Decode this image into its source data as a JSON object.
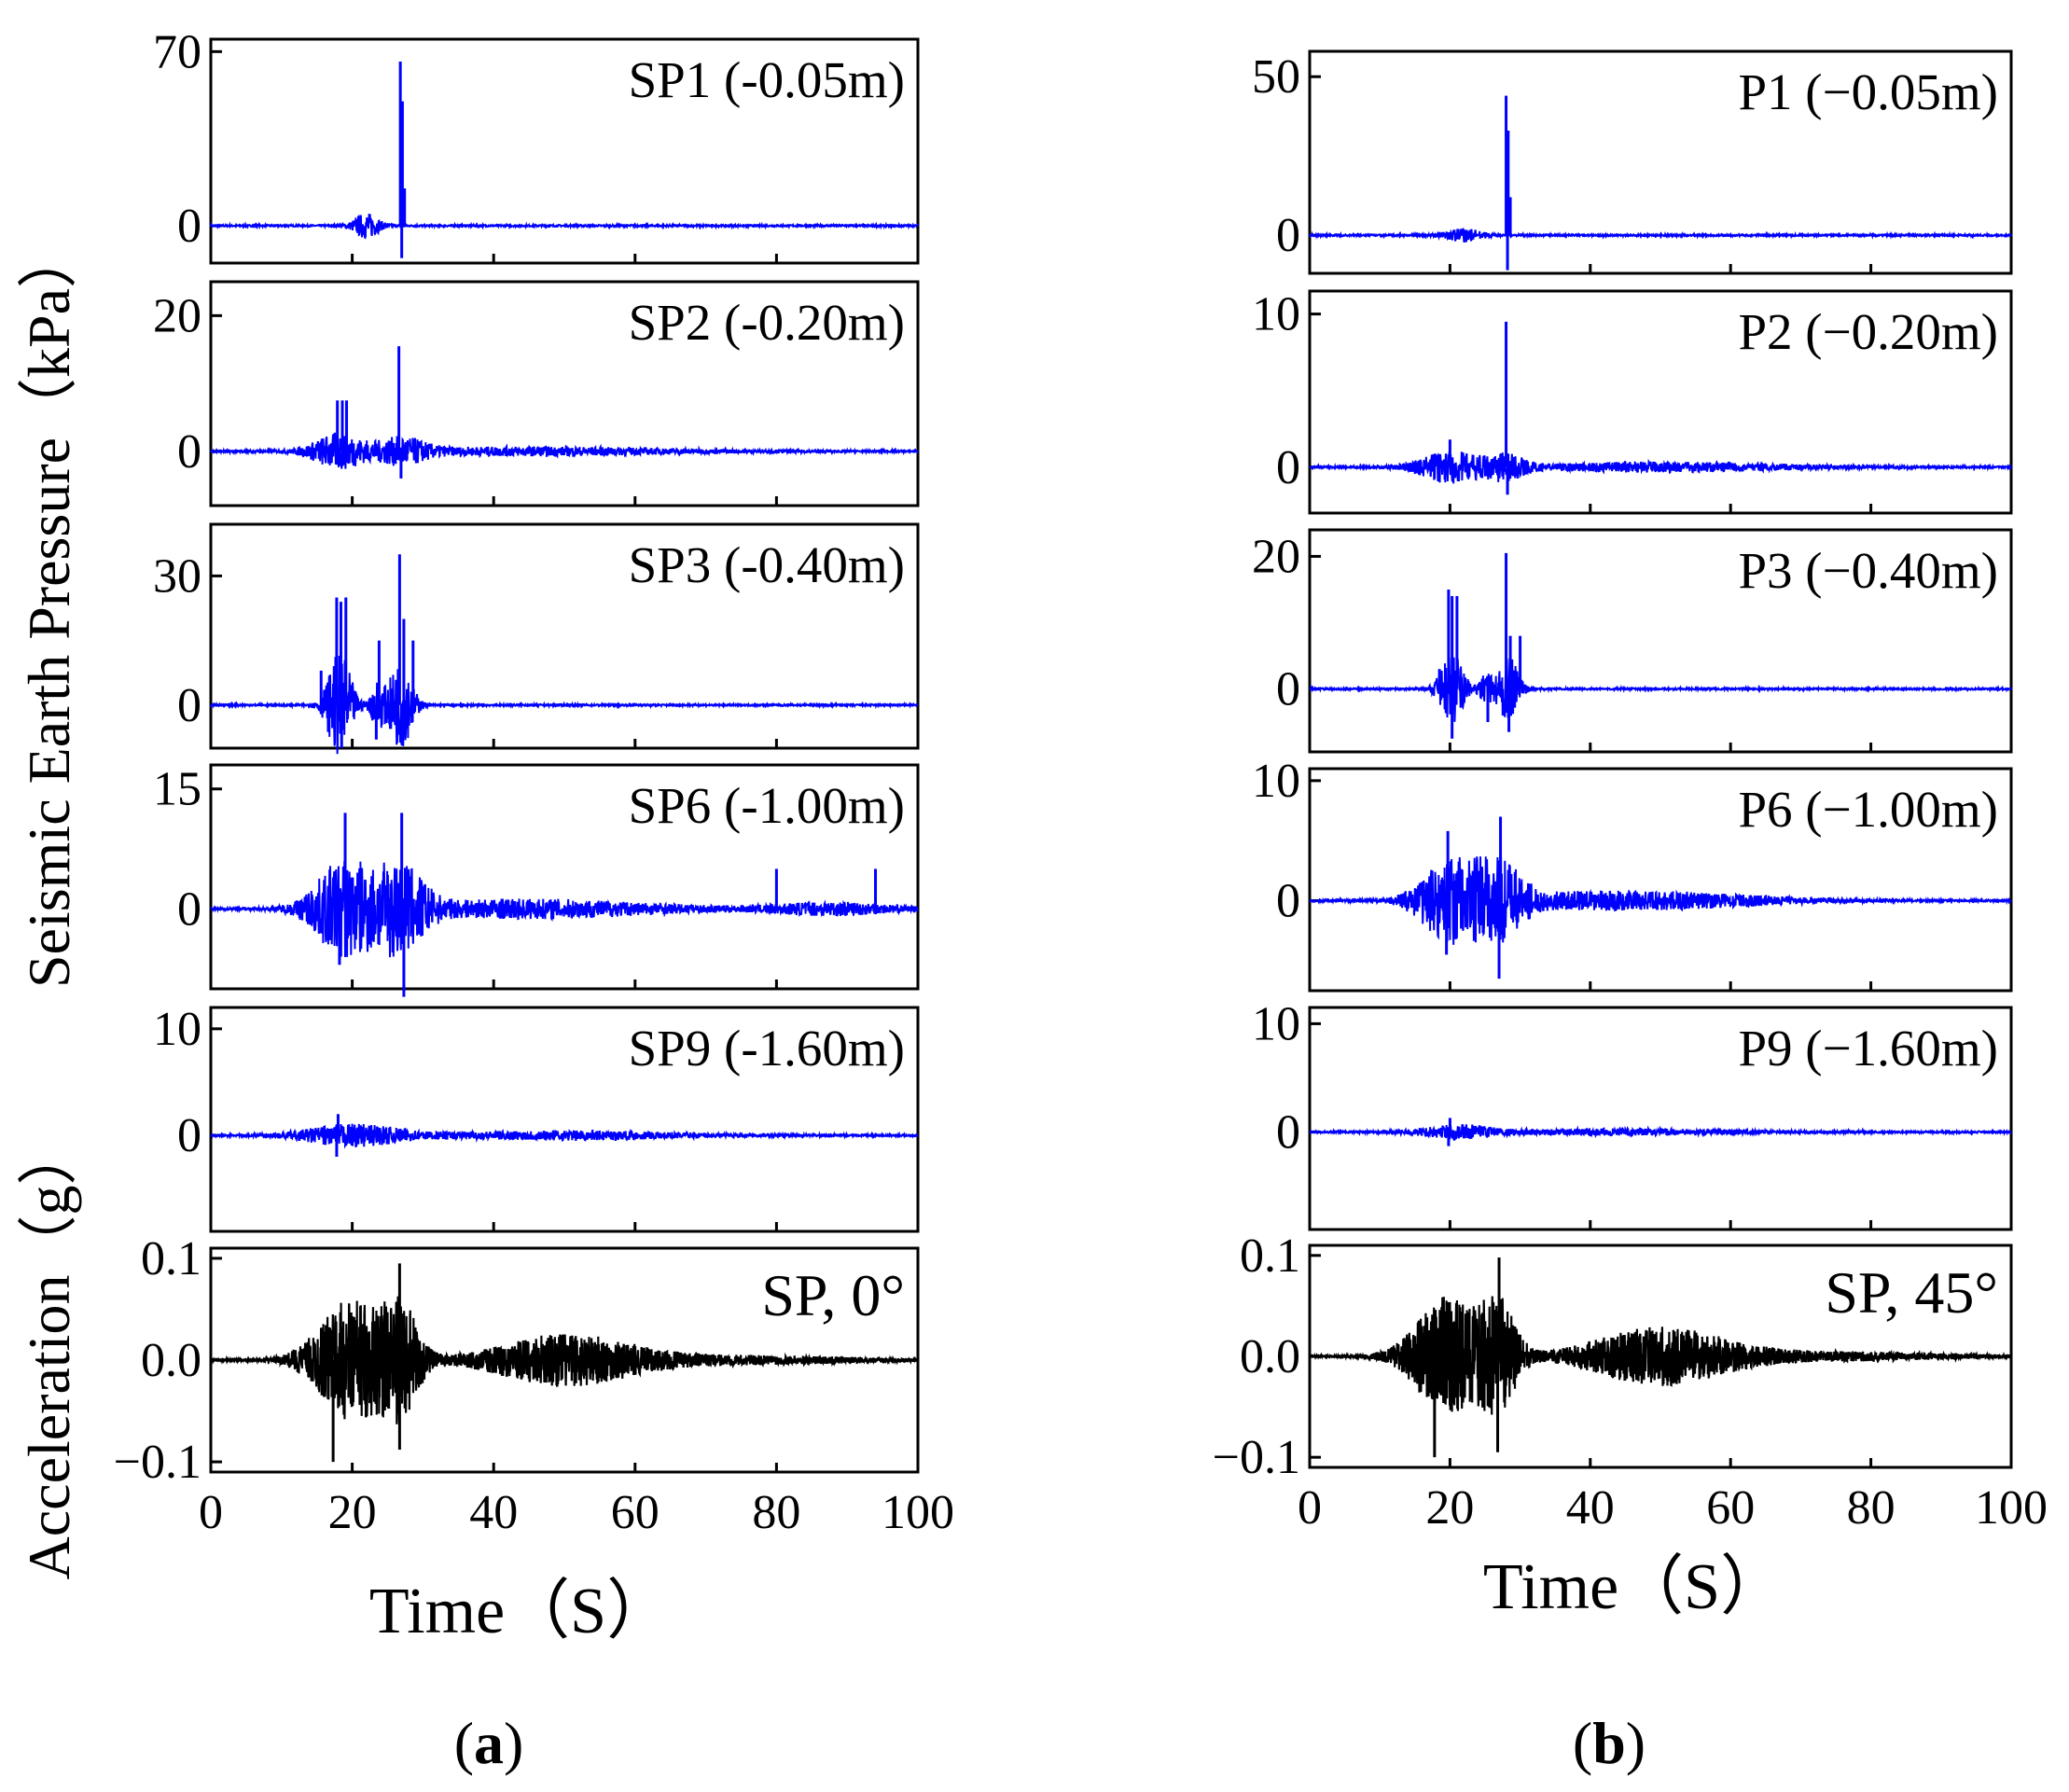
{
  "chart_data": [
    {
      "type": "line",
      "panel": "a",
      "caption": {
        "open": "(",
        "letter": "a",
        "close": ")"
      },
      "xlabel": "Time（S）",
      "ylabel_pressure": "Seismic Earth Pressure（kPa）",
      "ylabel_acceleration": "Acceleration（g）",
      "x_ticks": [
        "0",
        "20",
        "40",
        "60",
        "80",
        "100"
      ],
      "xlim": [
        0,
        100
      ],
      "subplots": [
        {
          "label": "SP1 (-0.05m)",
          "color": "#0000ff",
          "ylim": [
            -15,
            75
          ],
          "yticks": [
            0,
            70
          ],
          "ytick_labels": [
            "0",
            "70"
          ],
          "spikes": [
            [
              26.8,
              66
            ],
            [
              27.1,
              50
            ],
            [
              27.4,
              15
            ],
            [
              27.0,
              -13
            ]
          ],
          "bursts": [
            [
              22,
              2,
              5
            ]
          ]
        },
        {
          "label": "SP2 (-0.20m)",
          "color": "#0000ff",
          "ylim": [
            -8,
            25
          ],
          "yticks": [
            0,
            20
          ],
          "ytick_labels": [
            "0",
            "20"
          ],
          "spikes": [
            [
              17.9,
              7.5
            ],
            [
              18.6,
              7.5
            ],
            [
              19.2,
              7.5
            ],
            [
              26.6,
              15.5
            ],
            [
              26.9,
              -4
            ]
          ],
          "bursts": [
            [
              18,
              4,
              2.5
            ],
            [
              27,
              4,
              1.8
            ],
            [
              45,
              25,
              0.6
            ]
          ]
        },
        {
          "label": "SP3 (-0.40m)",
          "color": "#0000ff",
          "ylim": [
            -10,
            42
          ],
          "yticks": [
            0,
            30
          ],
          "ytick_labels": [
            "0",
            "30"
          ],
          "spikes": [
            [
              15.6,
              8
            ],
            [
              17.8,
              25
            ],
            [
              18.4,
              24
            ],
            [
              19.1,
              25
            ],
            [
              23.8,
              15
            ],
            [
              26.7,
              35
            ],
            [
              27.3,
              20
            ],
            [
              28.6,
              15
            ],
            [
              18.5,
              -10
            ],
            [
              23.4,
              -8
            ],
            [
              27.0,
              -9
            ]
          ],
          "bursts": [
            [
              18.2,
              2,
              12
            ],
            [
              26.8,
              2,
              10
            ],
            [
              23.5,
              1,
              5
            ]
          ]
        },
        {
          "label": "SP6 (-1.00m)",
          "color": "#0000ff",
          "ylim": [
            -10,
            18
          ],
          "yticks": [
            0,
            15
          ],
          "ytick_labels": [
            "0",
            "15"
          ],
          "spikes": [
            [
              19.0,
              12
            ],
            [
              27.0,
              12
            ],
            [
              80.0,
              5
            ],
            [
              94.0,
              5
            ],
            [
              27.3,
              -11
            ],
            [
              18.2,
              -7
            ]
          ],
          "bursts": [
            [
              19,
              5,
              6
            ],
            [
              27,
              4,
              5
            ],
            [
              45,
              22,
              1.2
            ],
            [
              88,
              10,
              0.8
            ]
          ]
        },
        {
          "label": "SP9 (-1.60m)",
          "color": "#0000ff",
          "ylim": [
            -9,
            12
          ],
          "yticks": [
            0,
            10
          ],
          "ytick_labels": [
            "0",
            "10"
          ],
          "spikes": [
            [
              18.0,
              2
            ],
            [
              17.8,
              -2
            ]
          ],
          "bursts": [
            [
              20,
              8,
              1.0
            ],
            [
              50,
              20,
              0.4
            ]
          ]
        },
        {
          "label": "SP, 0°",
          "color": "#000000",
          "ylim": [
            -0.11,
            0.11
          ],
          "yticks": [
            -0.1,
            0.0,
            0.1
          ],
          "ytick_labels": [
            "−0.1",
            "0.0",
            "0.1"
          ],
          "spikes": [
            [
              26.7,
              0.095
            ],
            [
              17.3,
              -0.1
            ],
            [
              26.7,
              -0.088
            ]
          ],
          "bursts": [
            [
              20,
              6,
              0.06
            ],
            [
              27,
              3,
              0.045
            ],
            [
              50,
              12,
              0.025
            ],
            [
              75,
              20,
              0.004
            ]
          ]
        }
      ]
    },
    {
      "type": "line",
      "panel": "b",
      "caption": {
        "open": "(",
        "letter": "b",
        "close": ")"
      },
      "xlabel": "Time（S）",
      "x_ticks": [
        "0",
        "20",
        "40",
        "60",
        "80",
        "100"
      ],
      "xlim": [
        0,
        100
      ],
      "subplots": [
        {
          "label": "P1 (−0.05m)",
          "color": "#0000ff",
          "ylim": [
            -12,
            58
          ],
          "yticks": [
            0,
            50
          ],
          "ytick_labels": [
            "0",
            "50"
          ],
          "spikes": [
            [
              28.0,
              44
            ],
            [
              28.3,
              33
            ],
            [
              28.6,
              12
            ],
            [
              28.2,
              -11
            ]
          ],
          "bursts": [
            [
              22,
              3,
              2
            ]
          ]
        },
        {
          "label": "P2 (−0.20m)",
          "color": "#0000ff",
          "ylim": [
            -3,
            11.5
          ],
          "yticks": [
            0,
            10
          ],
          "ytick_labels": [
            "0",
            "10"
          ],
          "spikes": [
            [
              28.0,
              9.5
            ],
            [
              20.0,
              1.8
            ],
            [
              28.2,
              -1.8
            ]
          ],
          "bursts": [
            [
              20,
              5,
              1.0
            ],
            [
              28,
              3,
              0.8
            ],
            [
              50,
              22,
              0.3
            ]
          ]
        },
        {
          "label": "P3 (−0.40m)",
          "color": "#0000ff",
          "ylim": [
            -9.5,
            24
          ],
          "yticks": [
            0,
            20
          ],
          "ytick_labels": [
            "0",
            "20"
          ],
          "spikes": [
            [
              18.5,
              3
            ],
            [
              19.8,
              15
            ],
            [
              20.3,
              14
            ],
            [
              21.0,
              14
            ],
            [
              28.0,
              20.5
            ],
            [
              28.6,
              8
            ],
            [
              30.0,
              8
            ],
            [
              20.3,
              -7.5
            ],
            [
              25.4,
              -5
            ],
            [
              28.4,
              -6.5
            ]
          ],
          "bursts": [
            [
              20.3,
              2,
              5
            ],
            [
              28.2,
              1.8,
              5
            ],
            [
              25.1,
              1,
              2
            ]
          ]
        },
        {
          "label": "P6 (−1.00m)",
          "color": "#0000ff",
          "ylim": [
            -7.5,
            11
          ],
          "yticks": [
            0,
            10
          ],
          "ytick_labels": [
            "0",
            "10"
          ],
          "spikes": [
            [
              19.7,
              5.8
            ],
            [
              27.2,
              7
            ],
            [
              27.0,
              -6.5
            ],
            [
              19.5,
              -4.5
            ]
          ],
          "bursts": [
            [
              20,
              5,
              3.2
            ],
            [
              27,
              4,
              3.0
            ],
            [
              45,
              22,
              0.8
            ]
          ]
        },
        {
          "label": "P9 (−1.60m)",
          "color": "#0000ff",
          "ylim": [
            -9,
            11.5
          ],
          "yticks": [
            0,
            10
          ],
          "ytick_labels": [
            "0",
            "10"
          ],
          "spikes": [
            [
              20.0,
              1.3
            ],
            [
              19.8,
              -1.3
            ]
          ],
          "bursts": [
            [
              21,
              6,
              0.6
            ],
            [
              45,
              20,
              0.25
            ]
          ]
        },
        {
          "label": "SP, 45°",
          "color": "#000000",
          "ylim": [
            -0.11,
            0.11
          ],
          "yticks": [
            -0.1,
            0.0,
            0.1
          ],
          "ytick_labels": [
            "−0.1",
            "0.0",
            "0.1"
          ],
          "spikes": [
            [
              27.0,
              0.098
            ],
            [
              17.8,
              -0.1
            ],
            [
              26.8,
              -0.095
            ]
          ],
          "bursts": [
            [
              20,
              6,
              0.06
            ],
            [
              27,
              3,
              0.045
            ],
            [
              50,
              12,
              0.028
            ],
            [
              75,
              20,
              0.004
            ]
          ]
        }
      ]
    }
  ]
}
